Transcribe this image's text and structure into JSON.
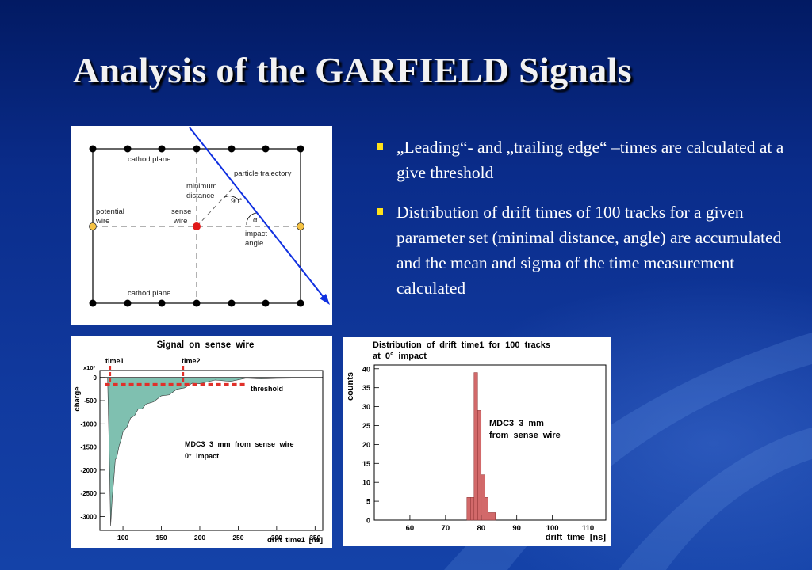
{
  "slide": {
    "title": "Analysis of the GARFIELD Signals",
    "bullets": [
      "„Leading“- and „trailing edge“ –times are calculated at a give threshold",
      "Distribution of drift times of 100 tracks for a given parameter set (minimal distance, angle) are accumulated and the mean and sigma of the time measurement calculated"
    ],
    "bullet_marker_color": "#ffe21a",
    "title_color": "#f2f2f2"
  },
  "diagram": {
    "cathod_top": "cathod plane",
    "cathod_bottom": "cathod plane",
    "particle_trajectory": "particle trajectory",
    "minimum": "minimum",
    "distance": "distance",
    "right_angle": "90°",
    "alpha": "α",
    "impact": "impact",
    "angle": "angle",
    "potential": "potential",
    "wire": "wire",
    "sense": "sense",
    "sense_wire": "wire"
  },
  "chart_data": [
    {
      "type": "area",
      "title": "Signal on sense wire",
      "xlabel": "drift time1 [ns]",
      "ylabel": "charge",
      "y_multiplier": "x10³",
      "xlim": [
        70,
        360
      ],
      "ylim": [
        -3300,
        150
      ],
      "x_ticks": [
        "100",
        "150",
        "200",
        "250",
        "300",
        "350"
      ],
      "y_ticks": [
        "0",
        "-500",
        "-1000",
        "-1500",
        "-2000",
        "-2500",
        "-3000"
      ],
      "fill_color": "#7fc0b0",
      "threshold_color": "#e0302a",
      "x": [
        80,
        82,
        84,
        86,
        88,
        90,
        92,
        95,
        98,
        100,
        105,
        110,
        115,
        120,
        125,
        130,
        140,
        150,
        160,
        170,
        180,
        190,
        200,
        220,
        240,
        260,
        280,
        300,
        320,
        340,
        350
      ],
      "y": [
        0,
        -1500,
        -3200,
        -2600,
        -2200,
        -1800,
        -1700,
        -1500,
        -1300,
        -1200,
        -1050,
        -900,
        -800,
        -700,
        -650,
        -600,
        -500,
        -420,
        -350,
        -280,
        -200,
        -150,
        -110,
        -80,
        -60,
        -40,
        -30,
        -20,
        -15,
        -10,
        -5
      ],
      "annotations": {
        "time1": "time1",
        "time2": "time2",
        "threshold": "threshold",
        "note_line1": "MDC3 3 mm from sense wire",
        "note_line2": "0° impact"
      },
      "time1": 83,
      "time2": 178,
      "threshold": -150
    },
    {
      "type": "bar",
      "title_line1": "Distribution of drift time1 for 100 tracks",
      "title_line2": "at 0° impact",
      "xlabel": "drift time [ns]",
      "ylabel": "counts",
      "xlim": [
        50,
        115
      ],
      "ylim": [
        0,
        41
      ],
      "x_ticks": [
        "60",
        "70",
        "80",
        "90",
        "100",
        "110"
      ],
      "y_ticks": [
        "0",
        "5",
        "10",
        "15",
        "20",
        "25",
        "30",
        "35",
        "40"
      ],
      "bar_color": "#d2696a",
      "bin_width": 1,
      "bin_starts": [
        76,
        77,
        78,
        79,
        80,
        81,
        82,
        83
      ],
      "values": [
        6,
        6,
        39,
        29,
        12,
        6,
        2,
        2
      ],
      "note_line1": "MDC3 3 mm",
      "note_line2": "from sense wire"
    }
  ]
}
